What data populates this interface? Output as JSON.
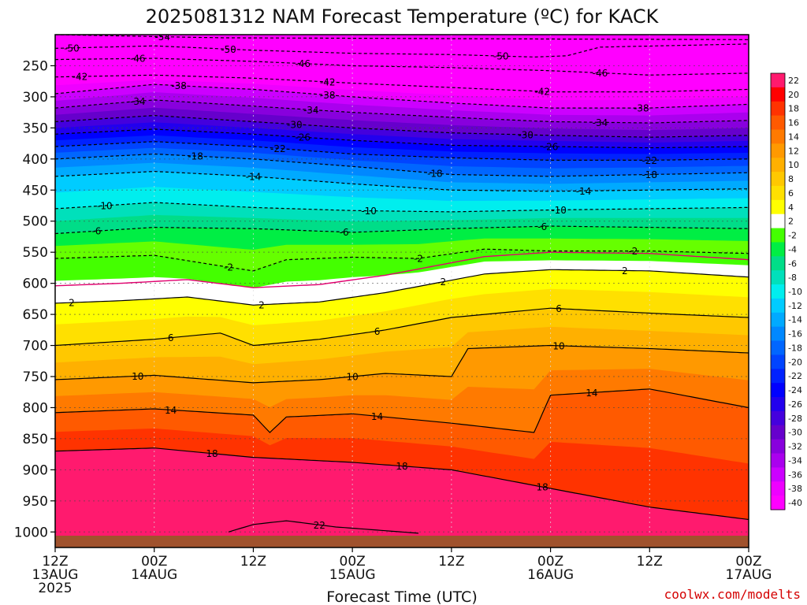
{
  "chart_data": {
    "type": "heatmap",
    "title": "2025081312 NAM Forecast Temperature (ºC) for KACK",
    "xlabel": "Forecast Time (UTC)",
    "ylabel": "",
    "credit": "coolwx.com/modelts",
    "x_ticks": [
      {
        "hour": 0,
        "line1": "12Z",
        "line2": "13AUG",
        "line3": "2025"
      },
      {
        "hour": 12,
        "line1": "00Z",
        "line2": "14AUG",
        "line3": ""
      },
      {
        "hour": 24,
        "line1": "12Z",
        "line2": "",
        "line3": ""
      },
      {
        "hour": 36,
        "line1": "00Z",
        "line2": "15AUG",
        "line3": ""
      },
      {
        "hour": 48,
        "line1": "12Z",
        "line2": "",
        "line3": ""
      },
      {
        "hour": 60,
        "line1": "00Z",
        "line2": "16AUG",
        "line3": ""
      },
      {
        "hour": 72,
        "line1": "12Z",
        "line2": "",
        "line3": ""
      },
      {
        "hour": 84,
        "line1": "00Z",
        "line2": "17AUG",
        "line3": ""
      }
    ],
    "y_ticks": [
      "250",
      "300",
      "350",
      "400",
      "450",
      "500",
      "550",
      "600",
      "650",
      "700",
      "750",
      "800",
      "850",
      "900",
      "950",
      "1000"
    ],
    "y_tick_values": [
      250,
      300,
      350,
      400,
      450,
      500,
      550,
      600,
      650,
      700,
      750,
      800,
      850,
      900,
      950,
      1000
    ],
    "xlim_hours": [
      0,
      84
    ],
    "ylim_hpa": [
      200,
      1025
    ],
    "colorbar": {
      "labels": [
        "22",
        "20",
        "18",
        "16",
        "14",
        "12",
        "10",
        "8",
        "6",
        "4",
        "2",
        "-2",
        "-4",
        "-6",
        "-8",
        "-10",
        "-12",
        "-14",
        "-16",
        "-18",
        "-20",
        "-22",
        "-24",
        "-26",
        "-28",
        "-30",
        "-32",
        "-34",
        "-36",
        "-38",
        "-40"
      ],
      "colors": [
        "#ff1a6e",
        "#ff0000",
        "#ff3300",
        "#ff5a00",
        "#ff7a00",
        "#ff9900",
        "#ffb000",
        "#ffc800",
        "#ffe000",
        "#ffff00",
        "#ffffff",
        "#44ff00",
        "#00ee44",
        "#00dd88",
        "#00e0bb",
        "#00eeee",
        "#00ccff",
        "#00aaff",
        "#0088ff",
        "#0066ff",
        "#0044ff",
        "#0022ff",
        "#0000ff",
        "#2200ee",
        "#4400dd",
        "#6600cc",
        "#8800dd",
        "#aa00ee",
        "#cc00ff",
        "#ee00ff",
        "#ff00ff"
      ]
    },
    "series": [
      {
        "temp": -54,
        "points": [
          [
            0,
            200
          ],
          [
            20,
            205
          ],
          [
            40,
            206
          ],
          [
            60,
            207
          ],
          [
            84,
            208
          ]
        ],
        "labels": [
          [
            13,
            "-54"
          ]
        ]
      },
      {
        "temp": -50,
        "points": [
          [
            0,
            222
          ],
          [
            12,
            218
          ],
          [
            24,
            225
          ],
          [
            36,
            230
          ],
          [
            48,
            232
          ],
          [
            58,
            236
          ],
          [
            62,
            234
          ],
          [
            66,
            220
          ],
          [
            84,
            215
          ]
        ],
        "labels": [
          [
            2,
            "-50"
          ],
          [
            21,
            "-50"
          ],
          [
            54,
            "-50"
          ]
        ]
      },
      {
        "temp": -46,
        "points": [
          [
            0,
            240
          ],
          [
            12,
            238
          ],
          [
            24,
            243
          ],
          [
            36,
            250
          ],
          [
            48,
            253
          ],
          [
            60,
            258
          ],
          [
            72,
            265
          ],
          [
            84,
            262
          ]
        ],
        "labels": [
          [
            10,
            "-46"
          ],
          [
            30,
            "-46"
          ],
          [
            66,
            "-46"
          ]
        ]
      },
      {
        "temp": -42,
        "points": [
          [
            0,
            268
          ],
          [
            12,
            265
          ],
          [
            24,
            270
          ],
          [
            36,
            278
          ],
          [
            48,
            285
          ],
          [
            60,
            292
          ],
          [
            72,
            292
          ],
          [
            84,
            288
          ]
        ],
        "labels": [
          [
            3,
            "-42"
          ],
          [
            33,
            "-42"
          ],
          [
            59,
            "-42"
          ]
        ]
      },
      {
        "temp": -38,
        "points": [
          [
            0,
            295
          ],
          [
            12,
            280
          ],
          [
            24,
            288
          ],
          [
            36,
            300
          ],
          [
            48,
            310
          ],
          [
            60,
            318
          ],
          [
            72,
            318
          ],
          [
            84,
            312
          ]
        ],
        "labels": [
          [
            15,
            "-38"
          ],
          [
            33,
            "-38"
          ],
          [
            71,
            "-38"
          ]
        ]
      },
      {
        "temp": -34,
        "points": [
          [
            0,
            318
          ],
          [
            12,
            305
          ],
          [
            24,
            315
          ],
          [
            36,
            325
          ],
          [
            48,
            333
          ],
          [
            60,
            340
          ],
          [
            72,
            342
          ],
          [
            84,
            338
          ]
        ],
        "labels": [
          [
            10,
            "-34"
          ],
          [
            31,
            "-34"
          ],
          [
            66,
            "-34"
          ]
        ]
      },
      {
        "temp": -30,
        "points": [
          [
            0,
            340
          ],
          [
            12,
            330
          ],
          [
            24,
            340
          ],
          [
            36,
            350
          ],
          [
            48,
            358
          ],
          [
            60,
            362
          ],
          [
            72,
            365
          ],
          [
            84,
            362
          ]
        ],
        "labels": [
          [
            29,
            "-30"
          ],
          [
            57,
            "-30"
          ]
        ]
      },
      {
        "temp": -26,
        "points": [
          [
            0,
            360
          ],
          [
            12,
            352
          ],
          [
            24,
            360
          ],
          [
            36,
            370
          ],
          [
            48,
            378
          ],
          [
            60,
            380
          ],
          [
            72,
            382
          ],
          [
            84,
            380
          ]
        ],
        "labels": [
          [
            30,
            "-26"
          ],
          [
            60,
            "-26"
          ]
        ]
      },
      {
        "temp": -22,
        "points": [
          [
            0,
            380
          ],
          [
            12,
            372
          ],
          [
            24,
            380
          ],
          [
            36,
            392
          ],
          [
            48,
            398
          ],
          [
            60,
            402
          ],
          [
            72,
            402
          ],
          [
            84,
            400
          ]
        ],
        "labels": [
          [
            27,
            "-22"
          ],
          [
            72,
            "-22"
          ]
        ]
      },
      {
        "temp": -18,
        "points": [
          [
            0,
            400
          ],
          [
            12,
            392
          ],
          [
            24,
            400
          ],
          [
            36,
            412
          ],
          [
            48,
            425
          ],
          [
            60,
            428
          ],
          [
            72,
            425
          ],
          [
            84,
            422
          ]
        ],
        "labels": [
          [
            17,
            "-18"
          ],
          [
            46,
            "-18"
          ],
          [
            72,
            "-18"
          ]
        ]
      },
      {
        "temp": -14,
        "points": [
          [
            0,
            428
          ],
          [
            12,
            420
          ],
          [
            24,
            428
          ],
          [
            36,
            440
          ],
          [
            48,
            450
          ],
          [
            60,
            452
          ],
          [
            72,
            450
          ],
          [
            84,
            448
          ]
        ],
        "labels": [
          [
            24,
            "-14"
          ],
          [
            64,
            "-14"
          ]
        ]
      },
      {
        "temp": -10,
        "points": [
          [
            0,
            480
          ],
          [
            12,
            470
          ],
          [
            24,
            478
          ],
          [
            36,
            483
          ],
          [
            48,
            485
          ],
          [
            60,
            482
          ],
          [
            72,
            480
          ],
          [
            84,
            478
          ]
        ],
        "labels": [
          [
            6,
            "-10"
          ],
          [
            38,
            "-10"
          ],
          [
            61,
            "-10"
          ]
        ]
      },
      {
        "temp": -6,
        "points": [
          [
            0,
            520
          ],
          [
            12,
            510
          ],
          [
            24,
            512
          ],
          [
            36,
            518
          ],
          [
            48,
            512
          ],
          [
            60,
            508
          ],
          [
            72,
            510
          ],
          [
            84,
            512
          ]
        ],
        "labels": [
          [
            5,
            "-6"
          ],
          [
            35,
            "-6"
          ],
          [
            59,
            "-6"
          ]
        ]
      },
      {
        "temp": -2,
        "points": [
          [
            0,
            560
          ],
          [
            12,
            555
          ],
          [
            20,
            572
          ],
          [
            24,
            580
          ],
          [
            28,
            562
          ],
          [
            36,
            558
          ],
          [
            44,
            560
          ],
          [
            52,
            545
          ],
          [
            60,
            548
          ],
          [
            72,
            548
          ],
          [
            84,
            552
          ]
        ],
        "labels": [
          [
            21,
            "-2"
          ],
          [
            44,
            "-2"
          ],
          [
            70,
            "-2"
          ]
        ]
      },
      {
        "temp": 2,
        "points": [
          [
            0,
            632
          ],
          [
            8,
            628
          ],
          [
            16,
            622
          ],
          [
            24,
            635
          ],
          [
            32,
            630
          ],
          [
            40,
            615
          ],
          [
            46,
            600
          ],
          [
            52,
            585
          ],
          [
            60,
            578
          ],
          [
            72,
            580
          ],
          [
            84,
            590
          ]
        ],
        "labels": [
          [
            2,
            "2"
          ],
          [
            25,
            "2"
          ],
          [
            47,
            "2"
          ],
          [
            69,
            "2"
          ]
        ]
      },
      {
        "temp": 6,
        "points": [
          [
            0,
            700
          ],
          [
            12,
            690
          ],
          [
            20,
            680
          ],
          [
            24,
            700
          ],
          [
            32,
            690
          ],
          [
            40,
            675
          ],
          [
            48,
            655
          ],
          [
            60,
            640
          ],
          [
            72,
            648
          ],
          [
            84,
            655
          ]
        ],
        "labels": [
          [
            14,
            "6"
          ],
          [
            39,
            "6"
          ],
          [
            61,
            "6"
          ]
        ]
      },
      {
        "temp": 10,
        "points": [
          [
            0,
            755
          ],
          [
            12,
            748
          ],
          [
            24,
            760
          ],
          [
            32,
            755
          ],
          [
            40,
            745
          ],
          [
            48,
            750
          ],
          [
            50,
            705
          ],
          [
            60,
            700
          ],
          [
            72,
            705
          ],
          [
            84,
            712
          ]
        ],
        "labels": [
          [
            10,
            "10"
          ],
          [
            36,
            "10"
          ],
          [
            61,
            "10"
          ]
        ]
      },
      {
        "temp": 14,
        "points": [
          [
            0,
            808
          ],
          [
            12,
            802
          ],
          [
            24,
            812
          ],
          [
            26,
            840
          ],
          [
            28,
            815
          ],
          [
            36,
            810
          ],
          [
            48,
            825
          ],
          [
            58,
            840
          ],
          [
            60,
            780
          ],
          [
            72,
            770
          ],
          [
            84,
            800
          ]
        ],
        "labels": [
          [
            14,
            "14"
          ],
          [
            39,
            "14"
          ],
          [
            65,
            "14"
          ]
        ]
      },
      {
        "temp": 18,
        "points": [
          [
            0,
            870
          ],
          [
            12,
            865
          ],
          [
            24,
            880
          ],
          [
            36,
            888
          ],
          [
            48,
            900
          ],
          [
            60,
            930
          ],
          [
            72,
            960
          ],
          [
            84,
            980
          ]
        ],
        "labels": [
          [
            19,
            "18"
          ],
          [
            42,
            "18"
          ],
          [
            59,
            "18"
          ]
        ]
      },
      {
        "temp": 22,
        "points": [
          [
            21,
            1000
          ],
          [
            24,
            988
          ],
          [
            28,
            982
          ],
          [
            34,
            992
          ],
          [
            44,
            1002
          ]
        ],
        "labels": [
          [
            32,
            "22"
          ]
        ]
      }
    ]
  }
}
